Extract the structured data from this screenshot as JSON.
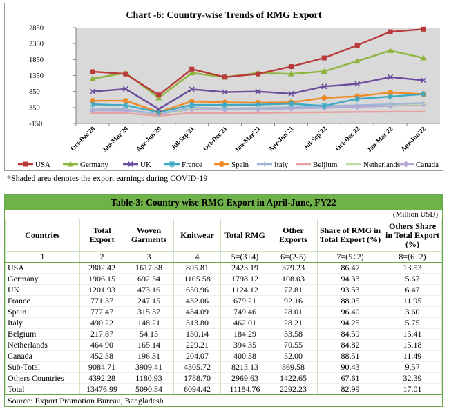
{
  "chart_data": {
    "type": "line",
    "title": "Chart -6: Country-wise Trends of RMG Export",
    "xlabel": "",
    "ylabel": "",
    "ylim": [
      -150,
      2850
    ],
    "yticks": [
      -150,
      350,
      850,
      1350,
      1850,
      2350,
      2850
    ],
    "categories": [
      "Oct-Dec'20",
      "Jan-Mar'20",
      "Apr-Jun'20",
      "Jul-Sep'21",
      "Oct-Dec'21",
      "Jan-Mar'21",
      "Apr-Jun'21",
      "Jul-Sep'22",
      "Oct-Dec'22",
      "Jan-Mar'22",
      "Apr-Jun'22"
    ],
    "shaded_range": {
      "from": "Oct-Dec'20",
      "to": "Apr-Jun'22"
    },
    "series": [
      {
        "name": "USA",
        "color": "#b83a3a",
        "marker": "square",
        "values": [
          1470,
          1400,
          740,
          1550,
          1300,
          1400,
          1630,
          1900,
          2300,
          2720,
          2800
        ]
      },
      {
        "name": "Germany",
        "color": "#8cb43c",
        "marker": "triangle",
        "values": [
          1250,
          1430,
          650,
          1430,
          1300,
          1430,
          1400,
          1480,
          1800,
          2130,
          1900
        ]
      },
      {
        "name": "UK",
        "color": "#6a4c9c",
        "marker": "x",
        "values": [
          850,
          930,
          300,
          920,
          830,
          850,
          780,
          1010,
          1090,
          1300,
          1200
        ]
      },
      {
        "name": "France",
        "color": "#3ca8c4",
        "marker": "star",
        "values": [
          450,
          420,
          200,
          430,
          430,
          440,
          470,
          400,
          620,
          690,
          770
        ]
      },
      {
        "name": "Spain",
        "color": "#f08a24",
        "marker": "circle",
        "values": [
          560,
          560,
          210,
          540,
          510,
          500,
          510,
          650,
          700,
          820,
          770
        ]
      },
      {
        "name": "Italy",
        "color": "#9fb5d8",
        "marker": "plus",
        "values": [
          290,
          300,
          140,
          350,
          320,
          330,
          360,
          390,
          420,
          450,
          490
        ]
      },
      {
        "name": "Beljium",
        "color": "#e6a0a0",
        "marker": "dash",
        "values": [
          170,
          170,
          90,
          180,
          180,
          180,
          190,
          200,
          210,
          220,
          220
        ]
      },
      {
        "name": "Netherlands",
        "color": "#c5dba6",
        "marker": "dash",
        "values": [
          280,
          300,
          120,
          330,
          330,
          340,
          370,
          400,
          420,
          440,
          460
        ]
      },
      {
        "name": "Canada",
        "color": "#b8a8d6",
        "marker": "diamond",
        "values": [
          260,
          250,
          140,
          300,
          280,
          290,
          320,
          340,
          370,
          400,
          450
        ]
      }
    ]
  },
  "note": "*Shaded area denotes the export earnings during COVID-19",
  "table": {
    "title": "Table-3: Country wise RMG Export in April-June, FY22",
    "unit": "(Million USD)",
    "headers": [
      "Countries",
      "Total Export",
      "Woven Garments",
      "Knitwear",
      "Total RMG",
      "Other Exports",
      "Share of RMG in Total Export (%)",
      "Others Share in Total Export (%)"
    ],
    "index_row": [
      "1",
      "2",
      "3",
      "4",
      "5=(3+4)",
      "6=(2-5)",
      "7=(5÷2)",
      "8=(6÷2)"
    ],
    "rows": [
      [
        "USA",
        "2802.42",
        "1617.38",
        "805.81",
        "2423.19",
        "379.23",
        "86.47",
        "13.53"
      ],
      [
        "Germany",
        "1906.15",
        "692.54",
        "1105.58",
        "1798.12",
        "108.03",
        "94.33",
        "5.67"
      ],
      [
        "UK",
        "1201.93",
        "473.16",
        "650.96",
        "1124.12",
        "77.81",
        "93.53",
        "6.47"
      ],
      [
        "France",
        "771.37",
        "247.15",
        "432.06",
        "679.21",
        "92.16",
        "88.05",
        "11.95"
      ],
      [
        "Spain",
        "777.47",
        "315.37",
        "434.09",
        "749.46",
        "28.01",
        "96.40",
        "3.60"
      ],
      [
        "Italy",
        "490.22",
        "148.21",
        "313.80",
        "462.01",
        "28.21",
        "94.25",
        "5.75"
      ],
      [
        "Belgium",
        "217.87",
        "54.15",
        "130.14",
        "184.29",
        "33.58",
        "84.59",
        "15.41"
      ],
      [
        "Netherlands",
        "464.90",
        "165.14",
        "229.21",
        "394.35",
        "70.55",
        "84.82",
        "15.18"
      ],
      [
        "Canada",
        "452.38",
        "196.31",
        "204.07",
        "400.38",
        "52.00",
        "88.51",
        "11.49"
      ],
      [
        "Sub-Total",
        "9084.71",
        "3909.41",
        "4305.72",
        "8215.13",
        "869.58",
        "90.43",
        "9.57"
      ],
      [
        "Others Countries",
        "4392.28",
        "1180.93",
        "1788.70",
        "2969.63",
        "1422.65",
        "67.61",
        "32.39"
      ],
      [
        "Total",
        "13476.99",
        "5090.34",
        "6094.42",
        "11184.76",
        "2292.23",
        "82.99",
        "17.01"
      ]
    ],
    "source": "Source: Export Promotion Bureau, Bangladesh"
  }
}
